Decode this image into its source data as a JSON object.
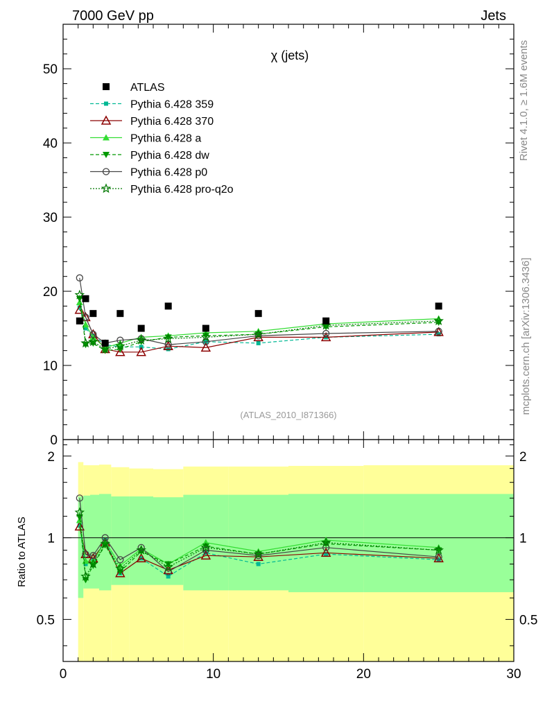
{
  "header": {
    "left_label": "7000 GeV pp",
    "right_label": "Jets",
    "side_top": "Rivet 4.1.0, ≥ 1.6M events",
    "side_bottom": "mcplots.cern.ch [arXiv:1306.3436]"
  },
  "colors": {
    "atlas": "#000000",
    "p359": "#00b894",
    "p370": "#8b0000",
    "pa": "#33dd33",
    "pdw": "#009900",
    "pp0": "#444444",
    "pproq2o": "#007700",
    "band_outer": "#ffff99",
    "band_inner": "#99ff99"
  },
  "chart_data": {
    "type": "line",
    "title": "χ (jets)",
    "xlabel": "",
    "ylabel": "",
    "ratio_ylabel": "Ratio to ATLAS",
    "analysis_label": "(ATLAS_2010_I871366)",
    "xlim": [
      0,
      30
    ],
    "ylim": [
      0,
      56
    ],
    "ratio_ylim": [
      0.35,
      2.3
    ],
    "x_ticks": [
      0,
      10,
      20,
      30
    ],
    "y_ticks": [
      0,
      10,
      20,
      30,
      40,
      50
    ],
    "ratio_ticks": [
      0.5,
      1,
      2
    ],
    "ratio_tick_labels": [
      "0.5",
      "1",
      "2"
    ],
    "bins": [
      [
        1.0,
        1.35
      ],
      [
        1.35,
        1.8
      ],
      [
        1.8,
        2.4
      ],
      [
        2.4,
        3.2
      ],
      [
        3.2,
        4.4
      ],
      [
        4.4,
        6.0
      ],
      [
        6.0,
        8.0
      ],
      [
        8.0,
        11.0
      ],
      [
        11.0,
        15.0
      ],
      [
        15.0,
        20.0
      ],
      [
        20.0,
        30.0
      ]
    ],
    "x": [
      1.1,
      1.5,
      2.0,
      2.8,
      3.8,
      5.2,
      7.0,
      9.5,
      13.0,
      17.5,
      25.0
    ],
    "atlas": {
      "name": "ATLAS",
      "values": [
        16,
        19,
        17,
        13,
        17,
        15,
        18,
        15,
        17,
        16,
        18
      ]
    },
    "band_inner": [
      [
        0.6,
        1.42
      ],
      [
        0.65,
        1.43
      ],
      [
        0.65,
        1.44
      ],
      [
        0.64,
        1.45
      ],
      [
        0.67,
        1.42
      ],
      [
        0.67,
        1.42
      ],
      [
        0.67,
        1.41
      ],
      [
        0.64,
        1.44
      ],
      [
        0.64,
        1.44
      ],
      [
        0.63,
        1.45
      ],
      [
        0.63,
        1.45
      ]
    ],
    "band_outer": [
      [
        0.0,
        1.9
      ],
      [
        0.0,
        1.85
      ],
      [
        0.0,
        1.85
      ],
      [
        0.0,
        1.86
      ],
      [
        0.0,
        1.82
      ],
      [
        0.0,
        1.8
      ],
      [
        0.0,
        1.79
      ],
      [
        0.0,
        1.83
      ],
      [
        0.0,
        1.83
      ],
      [
        0.0,
        1.84
      ],
      [
        0.0,
        1.85
      ]
    ],
    "series": [
      {
        "key": "p359",
        "name": "Pythia 6.428 359",
        "style": "dashed",
        "marker": "square",
        "values": [
          17.8,
          15.0,
          14.0,
          12.8,
          12.5,
          12.5,
          12.2,
          13.2,
          13.0,
          13.8,
          14.2
        ],
        "ratio": [
          1.11,
          0.8,
          0.83,
          0.98,
          0.74,
          0.84,
          0.72,
          0.88,
          0.8,
          0.87,
          0.83
        ]
      },
      {
        "key": "p370",
        "name": "Pythia 6.428 370",
        "style": "solid",
        "marker": "triangle-open",
        "values": [
          17.5,
          16.5,
          14.2,
          12.2,
          11.8,
          11.8,
          12.6,
          12.4,
          13.8,
          13.8,
          14.5
        ],
        "ratio": [
          1.1,
          0.87,
          0.84,
          0.96,
          0.74,
          0.84,
          0.76,
          0.86,
          0.85,
          0.88,
          0.84
        ]
      },
      {
        "key": "pa",
        "name": "Pythia 6.428 a",
        "style": "solid",
        "marker": "triangle",
        "values": [
          18.5,
          15.5,
          13.8,
          12.4,
          13.0,
          13.8,
          14.0,
          14.4,
          14.6,
          15.6,
          16.3
        ],
        "ratio": [
          1.16,
          0.82,
          0.82,
          0.97,
          0.79,
          0.91,
          0.8,
          0.96,
          0.89,
          0.98,
          0.92
        ]
      },
      {
        "key": "pdw",
        "name": "Pythia 6.428 dw",
        "style": "dashed",
        "marker": "triangle-down",
        "values": [
          19.0,
          12.8,
          13.0,
          12.0,
          12.2,
          13.2,
          13.8,
          14.0,
          14.2,
          15.2,
          15.8
        ],
        "ratio": [
          1.19,
          0.7,
          0.79,
          0.94,
          0.75,
          0.89,
          0.8,
          0.93,
          0.87,
          0.95,
          0.9
        ]
      },
      {
        "key": "pp0",
        "name": "Pythia 6.428 p0",
        "style": "solid",
        "marker": "circle-open",
        "values": [
          21.8,
          16.5,
          14.2,
          13.0,
          13.4,
          13.6,
          12.8,
          13.2,
          14.0,
          14.3,
          14.6
        ],
        "ratio": [
          1.4,
          0.87,
          0.86,
          1.0,
          0.83,
          0.92,
          0.75,
          0.9,
          0.86,
          0.92,
          0.85
        ]
      },
      {
        "key": "pproq2o",
        "name": "Pythia 6.428 pro-q2o",
        "style": "dotted",
        "marker": "star",
        "values": [
          19.5,
          13.0,
          13.2,
          12.2,
          12.6,
          13.4,
          13.6,
          13.8,
          14.2,
          15.4,
          16.0
        ],
        "ratio": [
          1.24,
          0.72,
          0.8,
          0.95,
          0.77,
          0.9,
          0.78,
          0.92,
          0.87,
          0.96,
          0.9
        ]
      }
    ]
  }
}
